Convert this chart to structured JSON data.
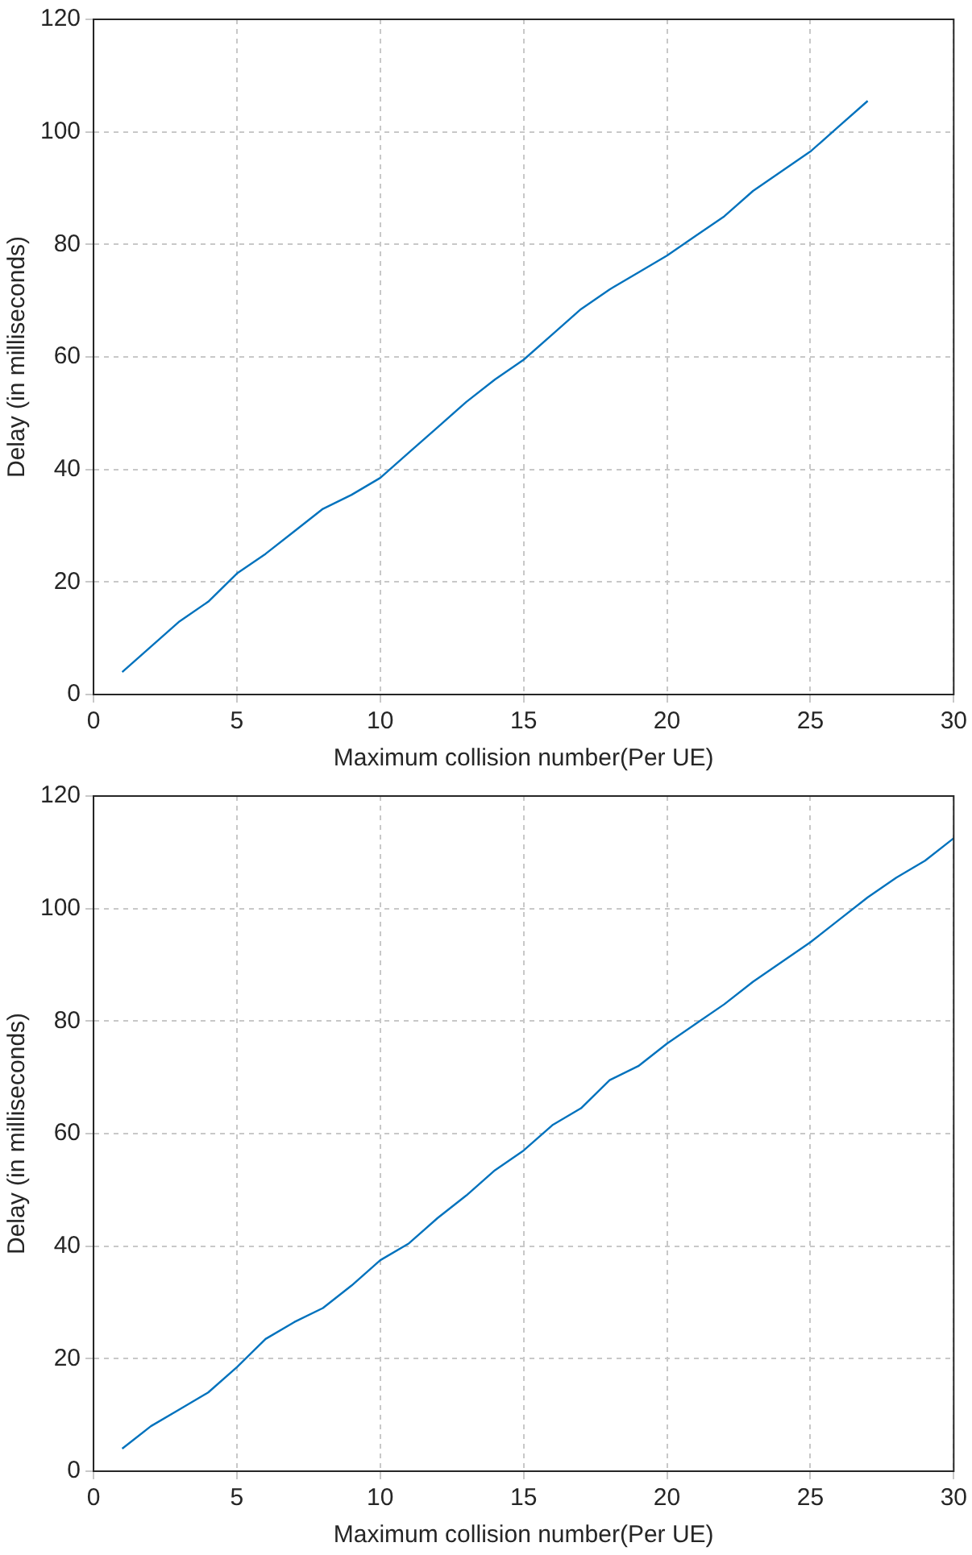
{
  "chart_data": [
    {
      "type": "line",
      "xlabel": "Maximum collision number(Per UE)",
      "ylabel": "Delay (in milliseconds)",
      "xlim": [
        0,
        30
      ],
      "xticks": [
        0,
        5,
        10,
        15,
        20,
        25,
        30
      ],
      "ylim": [
        0,
        120
      ],
      "yticks": [
        0,
        20,
        40,
        60,
        80,
        100,
        120
      ],
      "grid": true,
      "marker": "none",
      "line_style": "solid",
      "series": [
        {
          "color": "#0072bd",
          "x": [
            1,
            2,
            3,
            4,
            5,
            6,
            7,
            8,
            9,
            10,
            11,
            12,
            13,
            14,
            15,
            16,
            17,
            18,
            19,
            20,
            21,
            22,
            23,
            24,
            25,
            26,
            27
          ],
          "values": [
            4,
            8.5,
            13,
            16.5,
            21.5,
            25,
            29,
            33,
            35.5,
            38.5,
            43,
            47.5,
            52,
            56,
            59.5,
            64,
            68.5,
            72,
            75,
            78,
            81.5,
            85,
            89.5,
            93,
            96.5,
            101,
            105.5
          ]
        }
      ]
    },
    {
      "type": "line",
      "xlabel": "Maximum collision number(Per UE)",
      "ylabel": "Delay (in milliseconds)",
      "xlim": [
        0,
        30
      ],
      "xticks": [
        0,
        5,
        10,
        15,
        20,
        25,
        30
      ],
      "ylim": [
        0,
        120
      ],
      "yticks": [
        0,
        20,
        40,
        60,
        80,
        100,
        120
      ],
      "grid": true,
      "marker": "none",
      "line_style": "solid",
      "series": [
        {
          "color": "#0072bd",
          "x": [
            1,
            2,
            3,
            4,
            5,
            6,
            7,
            8,
            9,
            10,
            11,
            12,
            13,
            14,
            15,
            16,
            17,
            18,
            19,
            20,
            21,
            22,
            23,
            24,
            25,
            26,
            27,
            28,
            29,
            30
          ],
          "values": [
            4,
            8,
            11,
            14,
            18.5,
            23.5,
            26.5,
            29,
            33,
            37.5,
            40.5,
            45,
            49,
            53.5,
            57,
            61.5,
            64.5,
            69.5,
            72,
            76,
            79.5,
            83,
            87,
            90.5,
            94,
            98,
            102,
            105.5,
            108.5,
            112.5
          ]
        }
      ]
    }
  ]
}
